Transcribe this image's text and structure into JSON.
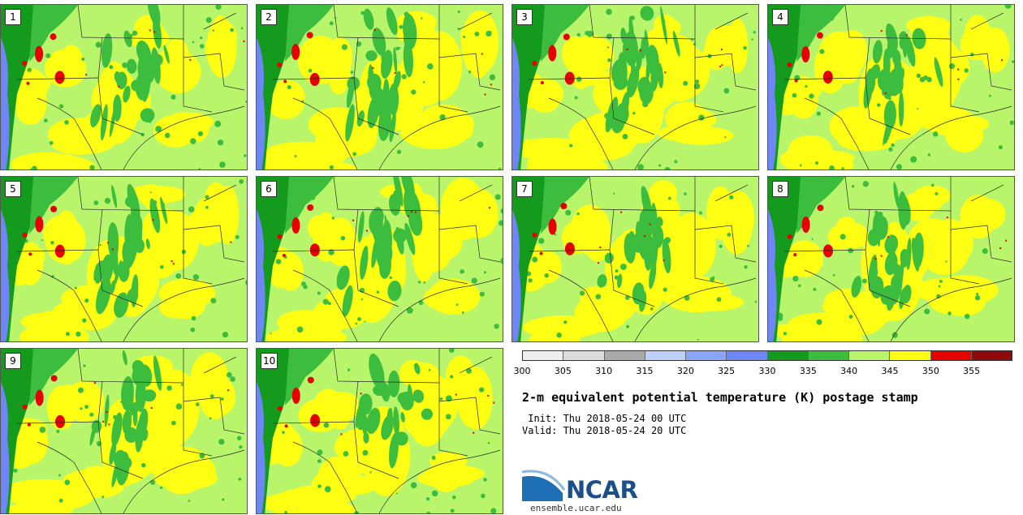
{
  "panels": [
    {
      "label": "1"
    },
    {
      "label": "2"
    },
    {
      "label": "3"
    },
    {
      "label": "4"
    },
    {
      "label": "5"
    },
    {
      "label": "6"
    },
    {
      "label": "7"
    },
    {
      "label": "8"
    },
    {
      "label": "9"
    },
    {
      "label": "10"
    }
  ],
  "legend": {
    "colors": [
      "#eeeeee",
      "#dcdcdc",
      "#aaaaaa",
      "#bcd0fa",
      "#8aa4fa",
      "#6f86f6",
      "#149b1e",
      "#3dbd3d",
      "#b8f56a",
      "#ffff14",
      "#e60000",
      "#8c0a0a"
    ],
    "ticks": [
      "300",
      "305",
      "310",
      "315",
      "320",
      "325",
      "330",
      "335",
      "340",
      "345",
      "350",
      "355"
    ]
  },
  "title": "2-m equivalent potential temperature (K) postage stamp",
  "init_text": " Init: Thu 2018-05-24 00 UTC",
  "valid_text": "Valid: Thu 2018-05-24 20 UTC",
  "logo_text": "NCAR",
  "url": "ensemble.ucar.edu",
  "map_colors": {
    "land": "#b8f56a",
    "warm": "#ffff14",
    "moist": "#3dbd3d",
    "dark_moist": "#149b1e",
    "hot": "#e60000",
    "ocean": "#6f86f6",
    "border": "#2a2a2a"
  }
}
